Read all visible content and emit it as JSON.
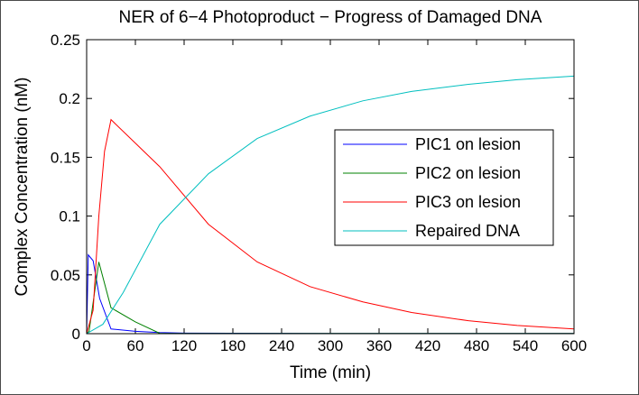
{
  "chart_data": {
    "type": "line",
    "title": "NER of 6−4 Photoproduct − Progress of Damaged DNA",
    "xlabel": "Time (min)",
    "ylabel": "Complex Concentration (nM)",
    "xlim": [
      0,
      600
    ],
    "ylim": [
      0,
      0.25
    ],
    "xticks": [
      0,
      60,
      120,
      180,
      240,
      300,
      360,
      420,
      480,
      540,
      600
    ],
    "yticks": [
      0,
      0.05,
      0.1,
      0.15,
      0.2,
      0.25
    ],
    "xtick_labels": [
      "0",
      "60",
      "120",
      "180",
      "240",
      "300",
      "360",
      "420",
      "480",
      "540",
      "600"
    ],
    "ytick_labels": [
      "0",
      "0.05",
      "0.1",
      "0.15",
      "0.2",
      "0.25"
    ],
    "grid": false,
    "legend_position": "right",
    "series": [
      {
        "name": "PIC1 on lesion",
        "color": "#0000ff",
        "x": [
          0,
          2,
          8,
          16,
          30,
          60,
          90,
          120,
          180,
          240,
          300,
          360,
          420,
          480,
          540,
          600
        ],
        "y": [
          0,
          0.067,
          0.062,
          0.03,
          0.004,
          0.002,
          0.001,
          0.0005,
          0.0004,
          0.0003,
          0.0002,
          0.0002,
          0.0002,
          0.0002,
          0.0002,
          0.0002
        ]
      },
      {
        "name": "PIC2 on lesion",
        "color": "#008000",
        "x": [
          0,
          3,
          15,
          30,
          60,
          90,
          120,
          180,
          240,
          300,
          360,
          420,
          480,
          540,
          600
        ],
        "y": [
          0,
          0.002,
          0.061,
          0.022,
          0.01,
          0.0003,
          0.0002,
          0.0002,
          0.0002,
          0.0002,
          0.0002,
          0.0002,
          0.0002,
          0.0002,
          0.0002
        ]
      },
      {
        "name": "PIC3 on lesion",
        "color": "#ff0000",
        "x": [
          0,
          8,
          15,
          22,
          30,
          60,
          90,
          150,
          210,
          275,
          340,
          400,
          470,
          530,
          600
        ],
        "y": [
          0,
          0.02,
          0.1,
          0.155,
          0.182,
          0.162,
          0.142,
          0.093,
          0.061,
          0.04,
          0.027,
          0.018,
          0.011,
          0.007,
          0.004
        ]
      },
      {
        "name": "Repaired DNA",
        "color": "#00bfbf",
        "x": [
          0,
          20,
          45,
          90,
          150,
          210,
          275,
          340,
          400,
          470,
          530,
          600
        ],
        "y": [
          0,
          0.008,
          0.035,
          0.093,
          0.136,
          0.166,
          0.185,
          0.198,
          0.206,
          0.212,
          0.216,
          0.219
        ]
      }
    ]
  }
}
